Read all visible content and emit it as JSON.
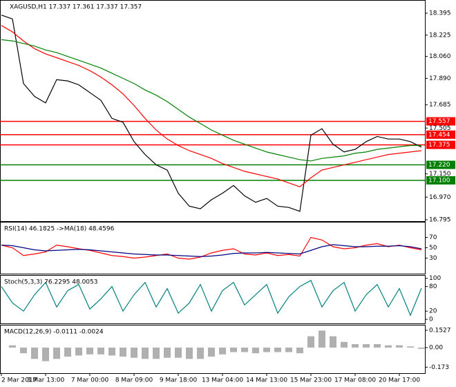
{
  "chart_data": [
    {
      "type": "line",
      "title": "XAGUSD,H1  17.337 17.361 17.337 17.357",
      "categories": [
        "2 Mar 2017",
        null,
        null,
        null,
        "3 Mar 13:00",
        null,
        null,
        null,
        "7 Mar 00:00",
        null,
        null,
        null,
        "8 Mar 09:00",
        null,
        null,
        null,
        "9 Mar 18:00",
        null,
        null,
        null,
        "13 Mar 04:00",
        null,
        null,
        null,
        "14 Mar 13:00",
        null,
        null,
        null,
        "15 Mar 23:00",
        null,
        null,
        null,
        "17 Mar 08:00",
        null,
        null,
        null,
        "20 Mar 17:00",
        null,
        null
      ],
      "ylim": [
        16.784,
        18.497
      ],
      "yticks": [
        18.395,
        18.225,
        {
          "value": 18.06,
          "label": "18.060"
        },
        {
          "value": 17.89,
          "label": "17.890"
        },
        17.685,
        17.505,
        {
          "value": 17.15,
          "label": "17.150"
        },
        {
          "value": 16.97,
          "label": "16.970"
        },
        16.795
      ],
      "levels": [
        {
          "value": 17.557,
          "color": "#ff0000"
        },
        {
          "value": 17.454,
          "color": "#ff0000"
        },
        {
          "value": 17.375,
          "color": "#ff0000"
        },
        {
          "value": 17.22,
          "label": "17.220",
          "color": "#008000"
        },
        {
          "value": 17.1,
          "label": "17.100",
          "color": "#008000"
        }
      ],
      "series": [
        {
          "color": "#000000",
          "values": [
            18.38,
            18.35,
            17.85,
            17.75,
            17.7,
            17.88,
            17.87,
            17.84,
            17.78,
            17.72,
            17.58,
            17.55,
            17.4,
            17.3,
            17.22,
            17.18,
            17.0,
            16.9,
            16.88,
            16.95,
            17.0,
            17.06,
            16.98,
            16.93,
            16.96,
            16.9,
            16.89,
            16.86,
            17.45,
            17.5,
            17.38,
            17.32,
            17.34,
            17.4,
            17.44,
            17.42,
            17.42,
            17.4,
            17.357
          ]
        },
        {
          "color": "#ff0000",
          "values": [
            18.3,
            18.25,
            18.18,
            18.12,
            18.08,
            18.05,
            18.02,
            17.99,
            17.95,
            17.9,
            17.84,
            17.77,
            17.68,
            17.58,
            17.49,
            17.42,
            17.37,
            17.33,
            17.3,
            17.27,
            17.23,
            17.2,
            17.17,
            17.15,
            17.13,
            17.11,
            17.08,
            17.05,
            17.12,
            17.18,
            17.2,
            17.22,
            17.24,
            17.26,
            17.28,
            17.3,
            17.31,
            17.32,
            17.33
          ]
        },
        {
          "color": "#008000",
          "values": [
            18.19,
            18.18,
            18.16,
            18.14,
            18.11,
            18.09,
            18.06,
            18.03,
            18.0,
            17.97,
            17.93,
            17.89,
            17.85,
            17.8,
            17.76,
            17.71,
            17.65,
            17.59,
            17.54,
            17.49,
            17.45,
            17.41,
            17.38,
            17.35,
            17.32,
            17.3,
            17.28,
            17.26,
            17.25,
            17.27,
            17.28,
            17.29,
            17.31,
            17.32,
            17.34,
            17.35,
            17.36,
            17.37,
            17.37
          ]
        }
      ]
    },
    {
      "type": "line",
      "title": "RSI(14) 46.1825  ->MA(18) 48.4596",
      "ylim": [
        0,
        100
      ],
      "yticks": [
        70,
        50,
        30
      ],
      "series": [
        {
          "color": "#ff0000",
          "values": [
            55,
            50,
            35,
            38,
            42,
            55,
            52,
            48,
            45,
            40,
            35,
            33,
            30,
            32,
            35,
            38,
            30,
            28,
            32,
            40,
            45,
            48,
            38,
            36,
            40,
            35,
            37,
            34,
            70,
            65,
            52,
            48,
            50,
            55,
            58,
            52,
            55,
            50,
            46
          ]
        },
        {
          "color": "#000080",
          "values": [
            55,
            54,
            50,
            46,
            44,
            45,
            46,
            47,
            46,
            44,
            42,
            40,
            38,
            37,
            36,
            36,
            35,
            34,
            33,
            34,
            36,
            39,
            40,
            40,
            41,
            40,
            39,
            38,
            45,
            52,
            56,
            54,
            52,
            52,
            53,
            53,
            54,
            52,
            48
          ]
        }
      ]
    },
    {
      "type": "line",
      "title": "Stoch(5,3,3) 76.2295 48.0053",
      "ylim": [
        -10,
        108
      ],
      "yticks": [
        100,
        80,
        20,
        0
      ],
      "series": [
        {
          "color": "#008080",
          "values": [
            80,
            40,
            20,
            60,
            90,
            30,
            70,
            85,
            25,
            50,
            80,
            20,
            60,
            90,
            30,
            75,
            15,
            40,
            85,
            20,
            70,
            90,
            35,
            60,
            85,
            15,
            55,
            80,
            95,
            30,
            70,
            90,
            20,
            60,
            85,
            30,
            75,
            10,
            76
          ]
        }
      ]
    },
    {
      "type": "bar",
      "title": "MACD(12,26,9) -0.0111 -0.0024",
      "ylim": [
        -0.226,
        0.201
      ],
      "yticks": [
        0.1527,
        {
          "value": 0,
          "label": "0.00"
        },
        -0.173
      ],
      "color": "#b0b0b0",
      "values": [
        0.0,
        0.02,
        -0.05,
        -0.1,
        -0.12,
        -0.1,
        -0.08,
        -0.07,
        -0.06,
        -0.06,
        -0.07,
        -0.08,
        -0.09,
        -0.1,
        -0.1,
        -0.09,
        -0.09,
        -0.1,
        -0.1,
        -0.08,
        -0.06,
        -0.04,
        -0.04,
        -0.05,
        -0.04,
        -0.04,
        -0.04,
        -0.05,
        0.1,
        0.15,
        0.1,
        0.05,
        0.03,
        0.03,
        0.03,
        0.02,
        0.02,
        0.01,
        -0.011
      ]
    }
  ]
}
